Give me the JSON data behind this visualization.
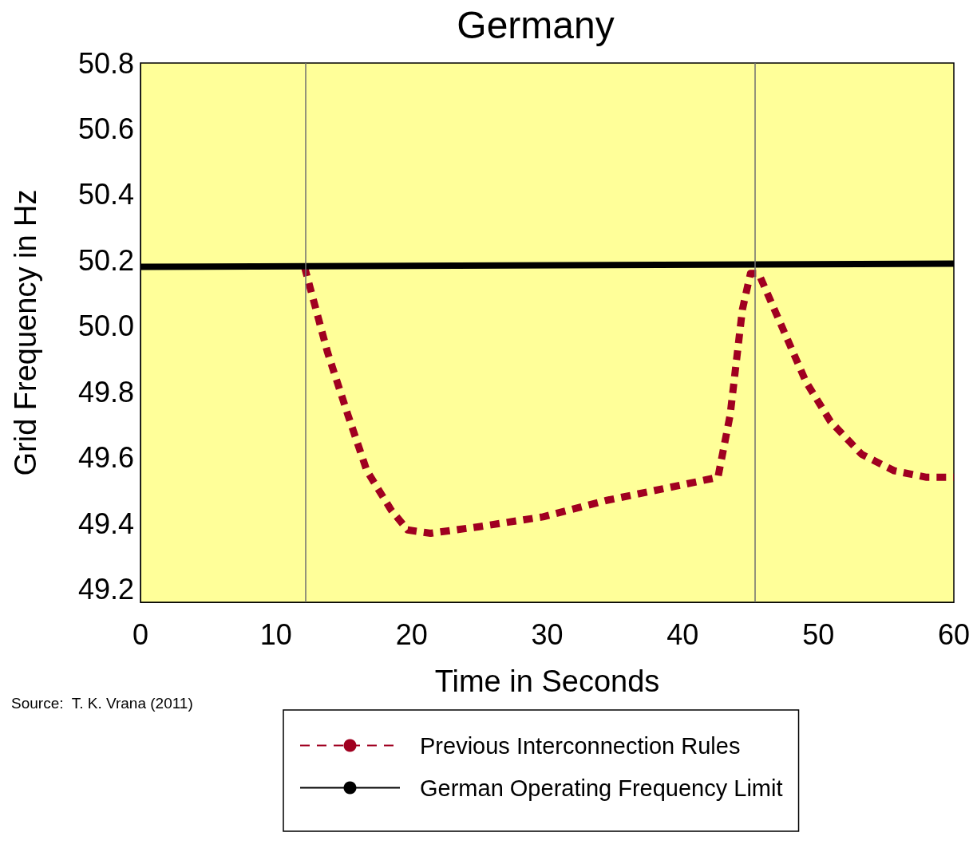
{
  "chart_data": {
    "type": "line",
    "title": "Germany",
    "xlabel": "Time in Seconds",
    "ylabel": "Grid Frequency in Hz",
    "xlim": [
      0,
      60
    ],
    "xticks": [
      0,
      10,
      20,
      30,
      40,
      50,
      60
    ],
    "ylim": [
      49.16,
      50.8
    ],
    "yticks": [
      {
        "value": 49.2,
        "label": "49.2"
      },
      {
        "value": 49.4,
        "label": "49.4"
      },
      {
        "value": 49.6,
        "label": "49.6"
      },
      {
        "value": 49.8,
        "label": "49.8"
      },
      {
        "value": 50.0,
        "label": "50.0"
      },
      {
        "value": 50.2,
        "label": "50.2"
      },
      {
        "value": 50.4,
        "label": "50.4"
      },
      {
        "value": 50.6,
        "label": "50.6"
      },
      {
        "value": 50.8,
        "label": "50.8"
      }
    ],
    "grid": false,
    "legend": "bottom",
    "marker": "none",
    "series": [
      {
        "name": "Previous Interconnection Rules",
        "color": "#a00020",
        "line_style": "dashed",
        "x": [
          12.1,
          13.8,
          15.3,
          16.7,
          18.5,
          19.7,
          21.4,
          25.0,
          29.7,
          34.4,
          39.1,
          42.6,
          43.5,
          44.4,
          45.0,
          45.6,
          47.3,
          49.1,
          50.9,
          53.2,
          55.6,
          58.0,
          60
        ],
        "values": [
          50.18,
          49.92,
          49.73,
          49.56,
          49.44,
          49.38,
          49.37,
          49.39,
          49.42,
          49.47,
          49.51,
          49.54,
          49.73,
          50.05,
          50.16,
          50.16,
          50.0,
          49.83,
          49.71,
          49.61,
          49.56,
          49.54,
          49.54
        ]
      },
      {
        "name": "German Operating Frequency Limit",
        "color": "#000000",
        "line_style": "solid",
        "x": [
          0,
          60
        ],
        "values": [
          50.18,
          50.19
        ]
      }
    ],
    "ref_lines": [
      {
        "axis": "x",
        "value": 12.2,
        "color": "#707070"
      },
      {
        "axis": "x",
        "value": 45.3,
        "color": "#707070"
      }
    ],
    "annotations": [
      "Source:  T. K. Vrana (2011)"
    ]
  }
}
